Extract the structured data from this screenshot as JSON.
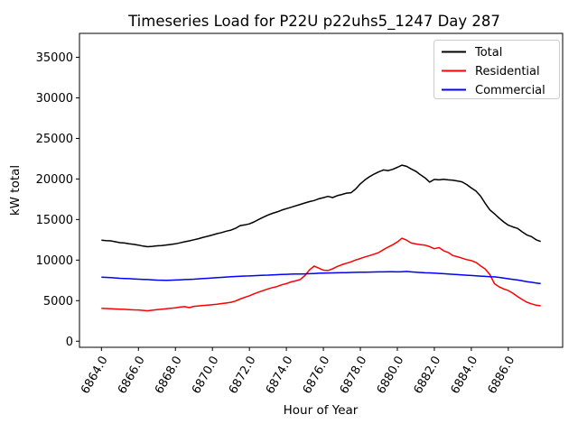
{
  "chart_data": {
    "type": "line",
    "title": "Timeseries Load for P22U p22uhs5_1247  Day 287",
    "xlabel": "Hour of Year",
    "ylabel": "kW total",
    "xlim": [
      6862.8125,
      6888.9375
    ],
    "ylim": [
      -750,
      37950
    ],
    "xticks": [
      6864,
      6866,
      6868,
      6870,
      6872,
      6874,
      6876,
      6878,
      6880,
      6882,
      6884,
      6886
    ],
    "yticks": [
      0,
      5000,
      10000,
      15000,
      20000,
      25000,
      30000,
      35000
    ],
    "x_start": 6864.0,
    "x_step": 0.25,
    "grid": false,
    "legend_position": "upper right",
    "series": [
      {
        "name": "Total",
        "color": "#000000",
        "values": [
          12450,
          12400,
          12370,
          12260,
          12150,
          12100,
          12010,
          11940,
          11850,
          11730,
          11650,
          11690,
          11760,
          11790,
          11860,
          11930,
          12010,
          12130,
          12260,
          12370,
          12510,
          12640,
          12810,
          12940,
          13090,
          13260,
          13390,
          13560,
          13700,
          13920,
          14250,
          14340,
          14460,
          14710,
          15010,
          15290,
          15550,
          15760,
          15940,
          16160,
          16340,
          16510,
          16690,
          16860,
          17040,
          17210,
          17340,
          17560,
          17700,
          17860,
          17710,
          17940,
          18090,
          18260,
          18310,
          18780,
          19400,
          19890,
          20290,
          20610,
          20890,
          21110,
          21040,
          21190,
          21440,
          21700,
          21560,
          21240,
          20950,
          20510,
          20140,
          19610,
          19950,
          19890,
          19960,
          19890,
          19840,
          19760,
          19640,
          19310,
          18890,
          18510,
          17890,
          17010,
          16190,
          15710,
          15190,
          14710,
          14310,
          14090,
          13910,
          13490,
          13110,
          12890,
          12510,
          12290
        ]
      },
      {
        "name": "Residential",
        "color": "#ff0000",
        "values": [
          4050,
          4030,
          4000,
          3980,
          3950,
          3930,
          3900,
          3870,
          3850,
          3800,
          3750,
          3820,
          3900,
          3950,
          4000,
          4060,
          4110,
          4210,
          4260,
          4140,
          4300,
          4350,
          4410,
          4450,
          4500,
          4560,
          4640,
          4710,
          4800,
          4950,
          5200,
          5410,
          5600,
          5840,
          6060,
          6240,
          6450,
          6610,
          6740,
          6960,
          7100,
          7310,
          7440,
          7610,
          8090,
          8790,
          9260,
          9010,
          8760,
          8710,
          8940,
          9210,
          9440,
          9610,
          9790,
          10010,
          10190,
          10390,
          10560,
          10740,
          10940,
          11290,
          11610,
          11890,
          12240,
          12690,
          12460,
          12110,
          11990,
          11910,
          11840,
          11660,
          11410,
          11540,
          11160,
          10940,
          10560,
          10410,
          10240,
          10060,
          9940,
          9710,
          9290,
          8910,
          8210,
          7090,
          6710,
          6440,
          6240,
          5910,
          5510,
          5140,
          4810,
          4610,
          4440,
          4360
        ]
      },
      {
        "name": "Commercial",
        "color": "#0000ff",
        "values": [
          7900,
          7870,
          7840,
          7800,
          7760,
          7730,
          7710,
          7680,
          7650,
          7620,
          7600,
          7570,
          7540,
          7520,
          7500,
          7520,
          7550,
          7570,
          7600,
          7620,
          7650,
          7690,
          7720,
          7760,
          7800,
          7840,
          7870,
          7910,
          7950,
          7980,
          8000,
          8030,
          8050,
          8080,
          8100,
          8130,
          8150,
          8180,
          8200,
          8230,
          8250,
          8270,
          8280,
          8290,
          8300,
          8330,
          8350,
          8380,
          8400,
          8410,
          8420,
          8440,
          8450,
          8460,
          8480,
          8490,
          8500,
          8510,
          8520,
          8540,
          8550,
          8550,
          8560,
          8560,
          8550,
          8570,
          8600,
          8550,
          8500,
          8470,
          8440,
          8420,
          8400,
          8360,
          8330,
          8290,
          8250,
          8210,
          8170,
          8130,
          8100,
          8060,
          8020,
          7990,
          7950,
          7930,
          7870,
          7790,
          7700,
          7620,
          7550,
          7450,
          7350,
          7270,
          7180,
          7100
        ]
      }
    ]
  }
}
